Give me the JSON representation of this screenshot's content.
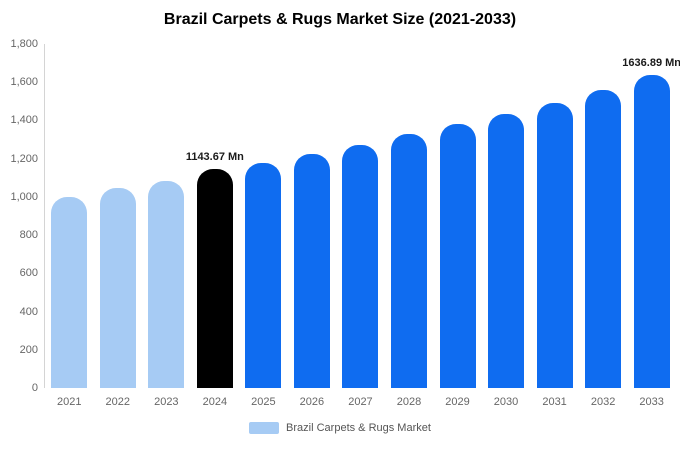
{
  "chart_data": {
    "type": "bar",
    "title": "Brazil Carpets & Rugs Market Size (2021-2033)",
    "categories": [
      "2021",
      "2022",
      "2023",
      "2024",
      "2025",
      "2026",
      "2027",
      "2028",
      "2029",
      "2030",
      "2031",
      "2032",
      "2033"
    ],
    "values": [
      1000,
      1045,
      1085,
      1143.67,
      1180,
      1225,
      1270,
      1330,
      1380,
      1435,
      1490,
      1560,
      1636.89
    ],
    "unit": "Mn",
    "ylim": [
      0,
      1800
    ],
    "yticks_desc": [
      "1,800",
      "1,600",
      "1,400",
      "1,200",
      "1,000",
      "800",
      "600",
      "400",
      "200",
      "0"
    ],
    "grid": false,
    "bar_colors": [
      "#A6CBF4",
      "#A6CBF4",
      "#A6CBF4",
      "#000000",
      "#0F6CF0",
      "#0F6CF0",
      "#0F6CF0",
      "#0F6CF0",
      "#0F6CF0",
      "#0F6CF0",
      "#0F6CF0",
      "#0F6CF0",
      "#0F6CF0"
    ],
    "annotations": [
      {
        "index": 3,
        "text": "1143.67 Mn"
      },
      {
        "index": 12,
        "text": "1636.89 Mn"
      }
    ],
    "legend_position": "bottom",
    "legend": [
      {
        "label": "Brazil Carpets & Rugs Market",
        "color": "#A6CBF4"
      }
    ]
  },
  "colors": {
    "historical_bar": "#A6CBF4",
    "base_year_bar": "#000000",
    "forecast_bar": "#0F6CF0",
    "axis_line": "#d4d4d4",
    "tick_text": "#666666"
  }
}
